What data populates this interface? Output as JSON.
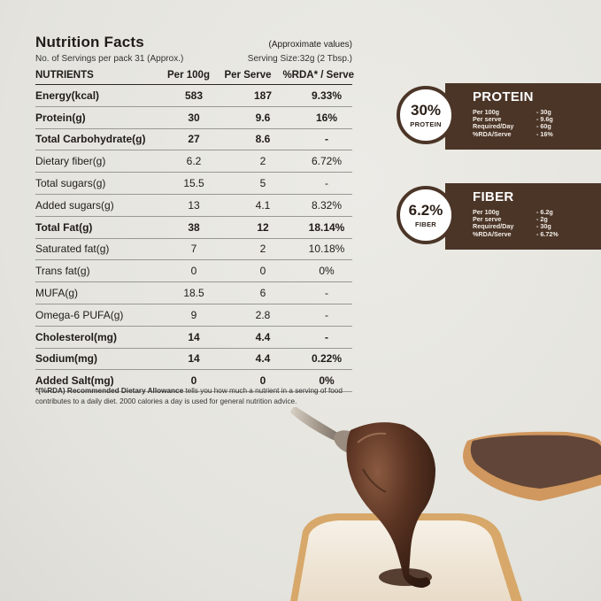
{
  "nutrition": {
    "title": "Nutrition Facts",
    "approx": "(Approximate values)",
    "servings": "No. of Servings per pack 31 (Approx.)",
    "serving_size": "Serving Size:32g (2 Tbsp.)",
    "headers": [
      "NUTRIENTS",
      "Per 100g",
      "Per Serve",
      "%RDA* / Serve"
    ],
    "rows": [
      {
        "name": "Energy(kcal)",
        "per100": "583",
        "serve": "187",
        "rda": "9.33%",
        "bold": true
      },
      {
        "name": "Protein(g)",
        "per100": "30",
        "serve": "9.6",
        "rda": "16%",
        "bold": true
      },
      {
        "name": "Total Carbohydrate(g)",
        "per100": "27",
        "serve": "8.6",
        "rda": "-",
        "bold": true
      },
      {
        "name": "Dietary fiber(g)",
        "per100": "6.2",
        "serve": "2",
        "rda": "6.72%",
        "bold": false
      },
      {
        "name": "Total sugars(g)",
        "per100": "15.5",
        "serve": "5",
        "rda": "-",
        "bold": false
      },
      {
        "name": "Added sugars(g)",
        "per100": "13",
        "serve": "4.1",
        "rda": "8.32%",
        "bold": false
      },
      {
        "name": "Total Fat(g)",
        "per100": "38",
        "serve": "12",
        "rda": "18.14%",
        "bold": true
      },
      {
        "name": "Saturated fat(g)",
        "per100": "7",
        "serve": "2",
        "rda": "10.18%",
        "bold": false
      },
      {
        "name": "Trans fat(g)",
        "per100": "0",
        "serve": "0",
        "rda": "0%",
        "bold": false
      },
      {
        "name": "MUFA(g)",
        "per100": "18.5",
        "serve": "6",
        "rda": "-",
        "bold": false
      },
      {
        "name": "Omega-6 PUFA(g)",
        "per100": "9",
        "serve": "2.8",
        "rda": "-",
        "bold": false
      },
      {
        "name": "Cholesterol(mg)",
        "per100": "14",
        "serve": "4.4",
        "rda": "-",
        "bold": true
      },
      {
        "name": "Sodium(mg)",
        "per100": "14",
        "serve": "4.4",
        "rda": "0.22%",
        "bold": true
      },
      {
        "name": "Added Salt(mg)",
        "per100": "0",
        "serve": "0",
        "rda": "0%",
        "bold": true
      }
    ],
    "footnote_bold": "*(%RDA) Recommended Dietary Allowance",
    "footnote_rest": " tells you how much a nutrient in a serving of food contributes to a daily diet. 2000 calories a day is used for general nutrition advice."
  },
  "badges": [
    {
      "percent": "30%",
      "circle_label": "PROTEIN",
      "title": "PROTEIN",
      "rows": [
        {
          "k": "Per 100g",
          "v": "- 30g"
        },
        {
          "k": "Per serve",
          "v": "- 9.6g"
        },
        {
          "k": "Required/Day",
          "v": "- 60g"
        },
        {
          "k": "%RDA/Serve",
          "v": "- 16%"
        }
      ]
    },
    {
      "percent": "6.2%",
      "circle_label": "FIBER",
      "title": "FIBER",
      "rows": [
        {
          "k": "Per 100g",
          "v": "- 6.2g"
        },
        {
          "k": "Per serve",
          "v": "- 2g"
        },
        {
          "k": "Required/Day",
          "v": "- 30g"
        },
        {
          "k": "%RDA/Serve",
          "v": "- 6.72%"
        }
      ]
    }
  ],
  "colors": {
    "background": "#e7e6e1",
    "badge_brown": "#4b3527",
    "chocolate": "#4a2a1c",
    "bread_crust": "#d7a86a",
    "bread_crumb": "#f2ebe0"
  },
  "icons": [
    "spoon-icon",
    "chocolate-drip",
    "bread-slice",
    "toast-with-spread"
  ]
}
